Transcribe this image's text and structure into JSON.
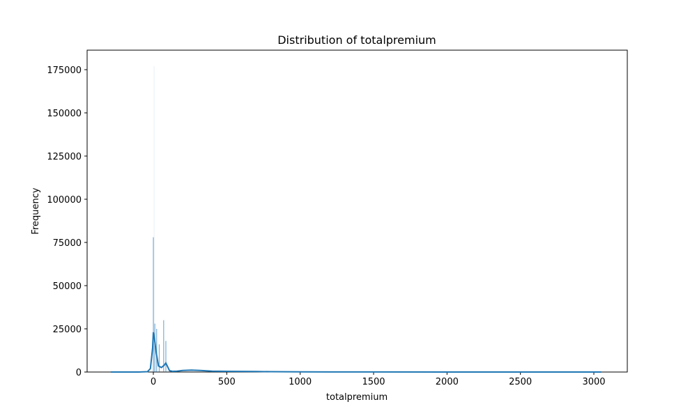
{
  "chart_data": {
    "type": "bar",
    "title": "Distribution of totalpremium",
    "xlabel": "totalpremium",
    "ylabel": "Frequency",
    "xlim": [
      -450,
      3120
    ],
    "ylim": [
      0,
      175000
    ],
    "xticks": [
      0,
      500,
      1000,
      1500,
      2000,
      2500,
      3000
    ],
    "yticks": [
      0,
      25000,
      50000,
      75000,
      100000,
      125000,
      150000,
      175000
    ],
    "grid": false,
    "histogram_bars": [
      {
        "x": 0,
        "value": 78000
      },
      {
        "x": 5,
        "value": 177000
      },
      {
        "x": 10,
        "value": 28000
      },
      {
        "x": 22,
        "value": 25000
      },
      {
        "x": 40,
        "value": 16000
      },
      {
        "x": 70,
        "value": 30000
      },
      {
        "x": 85,
        "value": 18000
      }
    ],
    "kde_line": {
      "x": [
        -290,
        -200,
        -100,
        -40,
        -20,
        -5,
        0,
        8,
        20,
        35,
        55,
        75,
        85,
        95,
        110,
        130,
        160,
        200,
        260,
        320,
        400,
        500,
        600,
        700,
        800,
        900,
        1000,
        1200,
        1500,
        2000,
        2500,
        3000,
        3050
      ],
      "y": [
        0,
        0,
        0,
        200,
        2000,
        14000,
        23000,
        19000,
        11000,
        3500,
        2600,
        4000,
        5200,
        3500,
        800,
        400,
        500,
        900,
        1100,
        900,
        500,
        400,
        350,
        280,
        200,
        150,
        100,
        70,
        40,
        20,
        10,
        5,
        0
      ]
    },
    "colors": {
      "bar": "#1f77b4",
      "line": "#1f77b4"
    }
  }
}
